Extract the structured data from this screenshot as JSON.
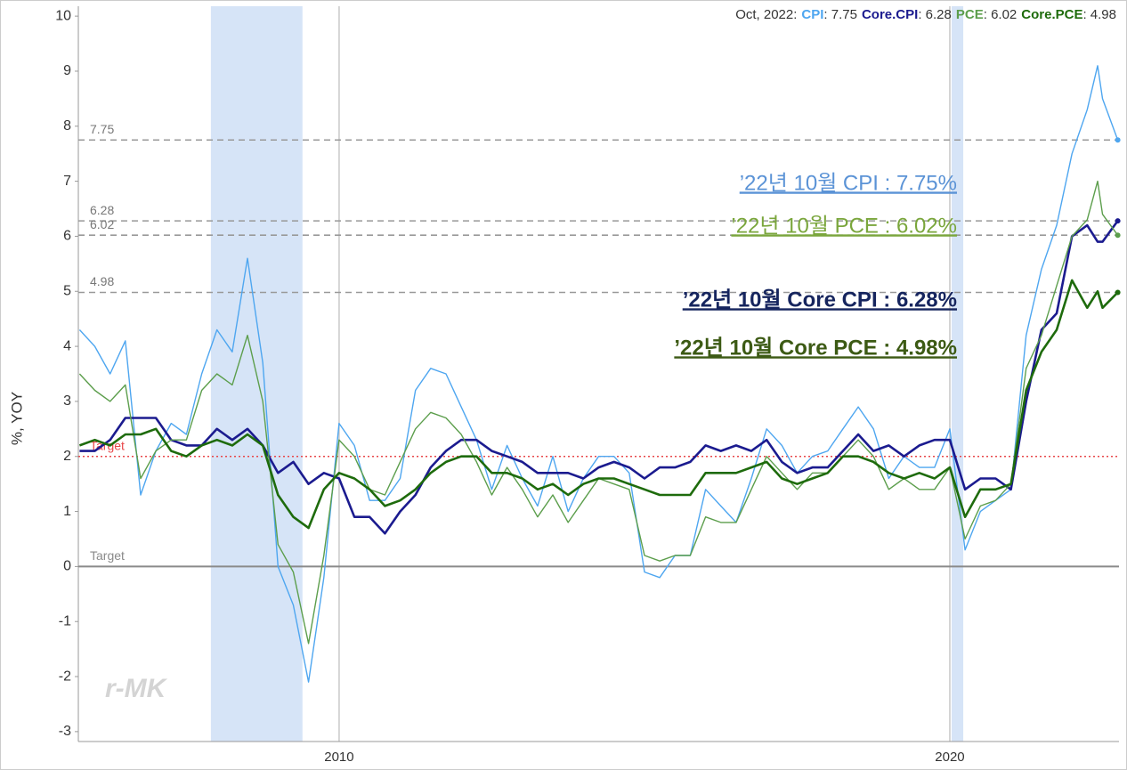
{
  "chart_data": {
    "type": "line",
    "y_label": "%, YOY",
    "legend_title": "Oct, 2022:",
    "watermark": "r-MK",
    "x": [
      2005.75,
      2006,
      2006.25,
      2006.5,
      2006.75,
      2007,
      2007.25,
      2007.5,
      2007.75,
      2008,
      2008.25,
      2008.5,
      2008.75,
      2009,
      2009.25,
      2009.5,
      2009.75,
      2010,
      2010.25,
      2010.5,
      2010.75,
      2011,
      2011.25,
      2011.5,
      2011.75,
      2012,
      2012.25,
      2012.5,
      2012.75,
      2013,
      2013.25,
      2013.5,
      2013.75,
      2014,
      2014.25,
      2014.5,
      2014.75,
      2015,
      2015.25,
      2015.5,
      2015.75,
      2016,
      2016.25,
      2016.5,
      2016.75,
      2017,
      2017.25,
      2017.5,
      2017.75,
      2018,
      2018.25,
      2018.5,
      2018.75,
      2019,
      2019.25,
      2019.5,
      2019.75,
      2020,
      2020.25,
      2020.5,
      2020.75,
      2021,
      2021.25,
      2021.5,
      2021.75,
      2022,
      2022.25,
      2022.42,
      2022.5,
      2022.75
    ],
    "series": [
      {
        "name": "CPI",
        "color": "#4ea6f0",
        "width": 1.4,
        "values": [
          4.3,
          4.0,
          3.5,
          4.1,
          1.3,
          2.1,
          2.6,
          2.4,
          3.5,
          4.3,
          3.9,
          5.6,
          3.7,
          0.0,
          -0.7,
          -2.1,
          -0.2,
          2.6,
          2.2,
          1.2,
          1.2,
          1.6,
          3.2,
          3.6,
          3.5,
          2.9,
          2.3,
          1.4,
          2.2,
          1.6,
          1.1,
          2.0,
          1.0,
          1.6,
          2.0,
          2.0,
          1.7,
          -0.1,
          -0.2,
          0.2,
          0.2,
          1.4,
          1.1,
          0.8,
          1.6,
          2.5,
          2.2,
          1.7,
          2.0,
          2.1,
          2.5,
          2.9,
          2.5,
          1.6,
          2.0,
          1.8,
          1.8,
          2.5,
          0.3,
          1.0,
          1.2,
          1.4,
          4.2,
          5.4,
          6.2,
          7.5,
          8.3,
          9.1,
          8.5,
          7.75
        ]
      },
      {
        "name": "Core.CPI",
        "color": "#1b1b8f",
        "width": 2.6,
        "values": [
          2.1,
          2.1,
          2.3,
          2.7,
          2.7,
          2.7,
          2.3,
          2.2,
          2.2,
          2.5,
          2.3,
          2.5,
          2.2,
          1.7,
          1.9,
          1.5,
          1.7,
          1.6,
          0.9,
          0.9,
          0.6,
          1.0,
          1.3,
          1.8,
          2.1,
          2.3,
          2.3,
          2.1,
          2.0,
          1.9,
          1.7,
          1.7,
          1.7,
          1.6,
          1.8,
          1.9,
          1.8,
          1.6,
          1.8,
          1.8,
          1.9,
          2.2,
          2.1,
          2.2,
          2.1,
          2.3,
          1.9,
          1.7,
          1.8,
          1.8,
          2.1,
          2.4,
          2.1,
          2.2,
          2.0,
          2.2,
          2.3,
          2.3,
          1.4,
          1.6,
          1.6,
          1.4,
          3.0,
          4.3,
          4.6,
          6.0,
          6.2,
          5.9,
          5.9,
          6.28
        ]
      },
      {
        "name": "PCE",
        "color": "#5c9e4c",
        "width": 1.4,
        "values": [
          3.5,
          3.2,
          3.0,
          3.3,
          1.6,
          2.1,
          2.3,
          2.3,
          3.2,
          3.5,
          3.3,
          4.2,
          3.0,
          0.4,
          -0.1,
          -1.4,
          0.2,
          2.3,
          2.0,
          1.4,
          1.3,
          1.9,
          2.5,
          2.8,
          2.7,
          2.4,
          1.9,
          1.3,
          1.8,
          1.4,
          0.9,
          1.3,
          0.8,
          1.2,
          1.6,
          1.5,
          1.4,
          0.2,
          0.1,
          0.2,
          0.2,
          0.9,
          0.8,
          0.8,
          1.4,
          2.0,
          1.7,
          1.4,
          1.7,
          1.7,
          2.0,
          2.3,
          2.0,
          1.4,
          1.6,
          1.4,
          1.4,
          1.8,
          0.5,
          1.1,
          1.2,
          1.5,
          3.6,
          4.2,
          5.1,
          6.0,
          6.3,
          7.0,
          6.4,
          6.02
        ]
      },
      {
        "name": "Core.PCE",
        "color": "#1e6b0c",
        "width": 2.6,
        "values": [
          2.2,
          2.3,
          2.2,
          2.4,
          2.4,
          2.5,
          2.1,
          2.0,
          2.2,
          2.3,
          2.2,
          2.4,
          2.2,
          1.3,
          0.9,
          0.7,
          1.4,
          1.7,
          1.6,
          1.4,
          1.1,
          1.2,
          1.4,
          1.7,
          1.9,
          2.0,
          2.0,
          1.7,
          1.7,
          1.6,
          1.4,
          1.5,
          1.3,
          1.5,
          1.6,
          1.6,
          1.5,
          1.4,
          1.3,
          1.3,
          1.3,
          1.7,
          1.7,
          1.7,
          1.8,
          1.9,
          1.6,
          1.5,
          1.6,
          1.7,
          2.0,
          2.0,
          1.9,
          1.7,
          1.6,
          1.7,
          1.6,
          1.8,
          0.9,
          1.4,
          1.4,
          1.5,
          3.2,
          3.9,
          4.3,
          5.2,
          4.7,
          5.0,
          4.7,
          4.98
        ]
      }
    ],
    "xlim": [
      2005.73,
      2022.77
    ],
    "xticks": [
      2010,
      2020
    ],
    "ylim": [
      -3.18,
      10.18
    ],
    "yticks": [
      -3,
      -2,
      -1,
      0,
      1,
      2,
      3,
      4,
      5,
      6,
      7,
      8,
      9,
      10
    ],
    "shaded_periods": [
      [
        2007.9,
        2009.4
      ],
      [
        2020.03,
        2020.22
      ]
    ],
    "reference_lines": [
      7.75,
      6.28,
      6.02,
      4.98
    ],
    "target_lines": [
      {
        "value": 2,
        "label": "Target",
        "color": "#e8474a"
      },
      {
        "value": 0,
        "label": "Target",
        "color": "#8a8a8a"
      }
    ],
    "annotations": [
      {
        "text": "’22년 10월 CPI : 7.75%",
        "color": "#5b93d6",
        "bold": false
      },
      {
        "text": "’22년 10월 PCE : 6.02%",
        "color": "#7aa63c",
        "bold": false
      },
      {
        "text": "’22년 10월 Core CPI : 6.28%",
        "color": "#16255e",
        "bold": true
      },
      {
        "text": "’22년 10월 Core PCE : 4.98%",
        "color": "#3c5a14",
        "bold": true
      }
    ]
  }
}
